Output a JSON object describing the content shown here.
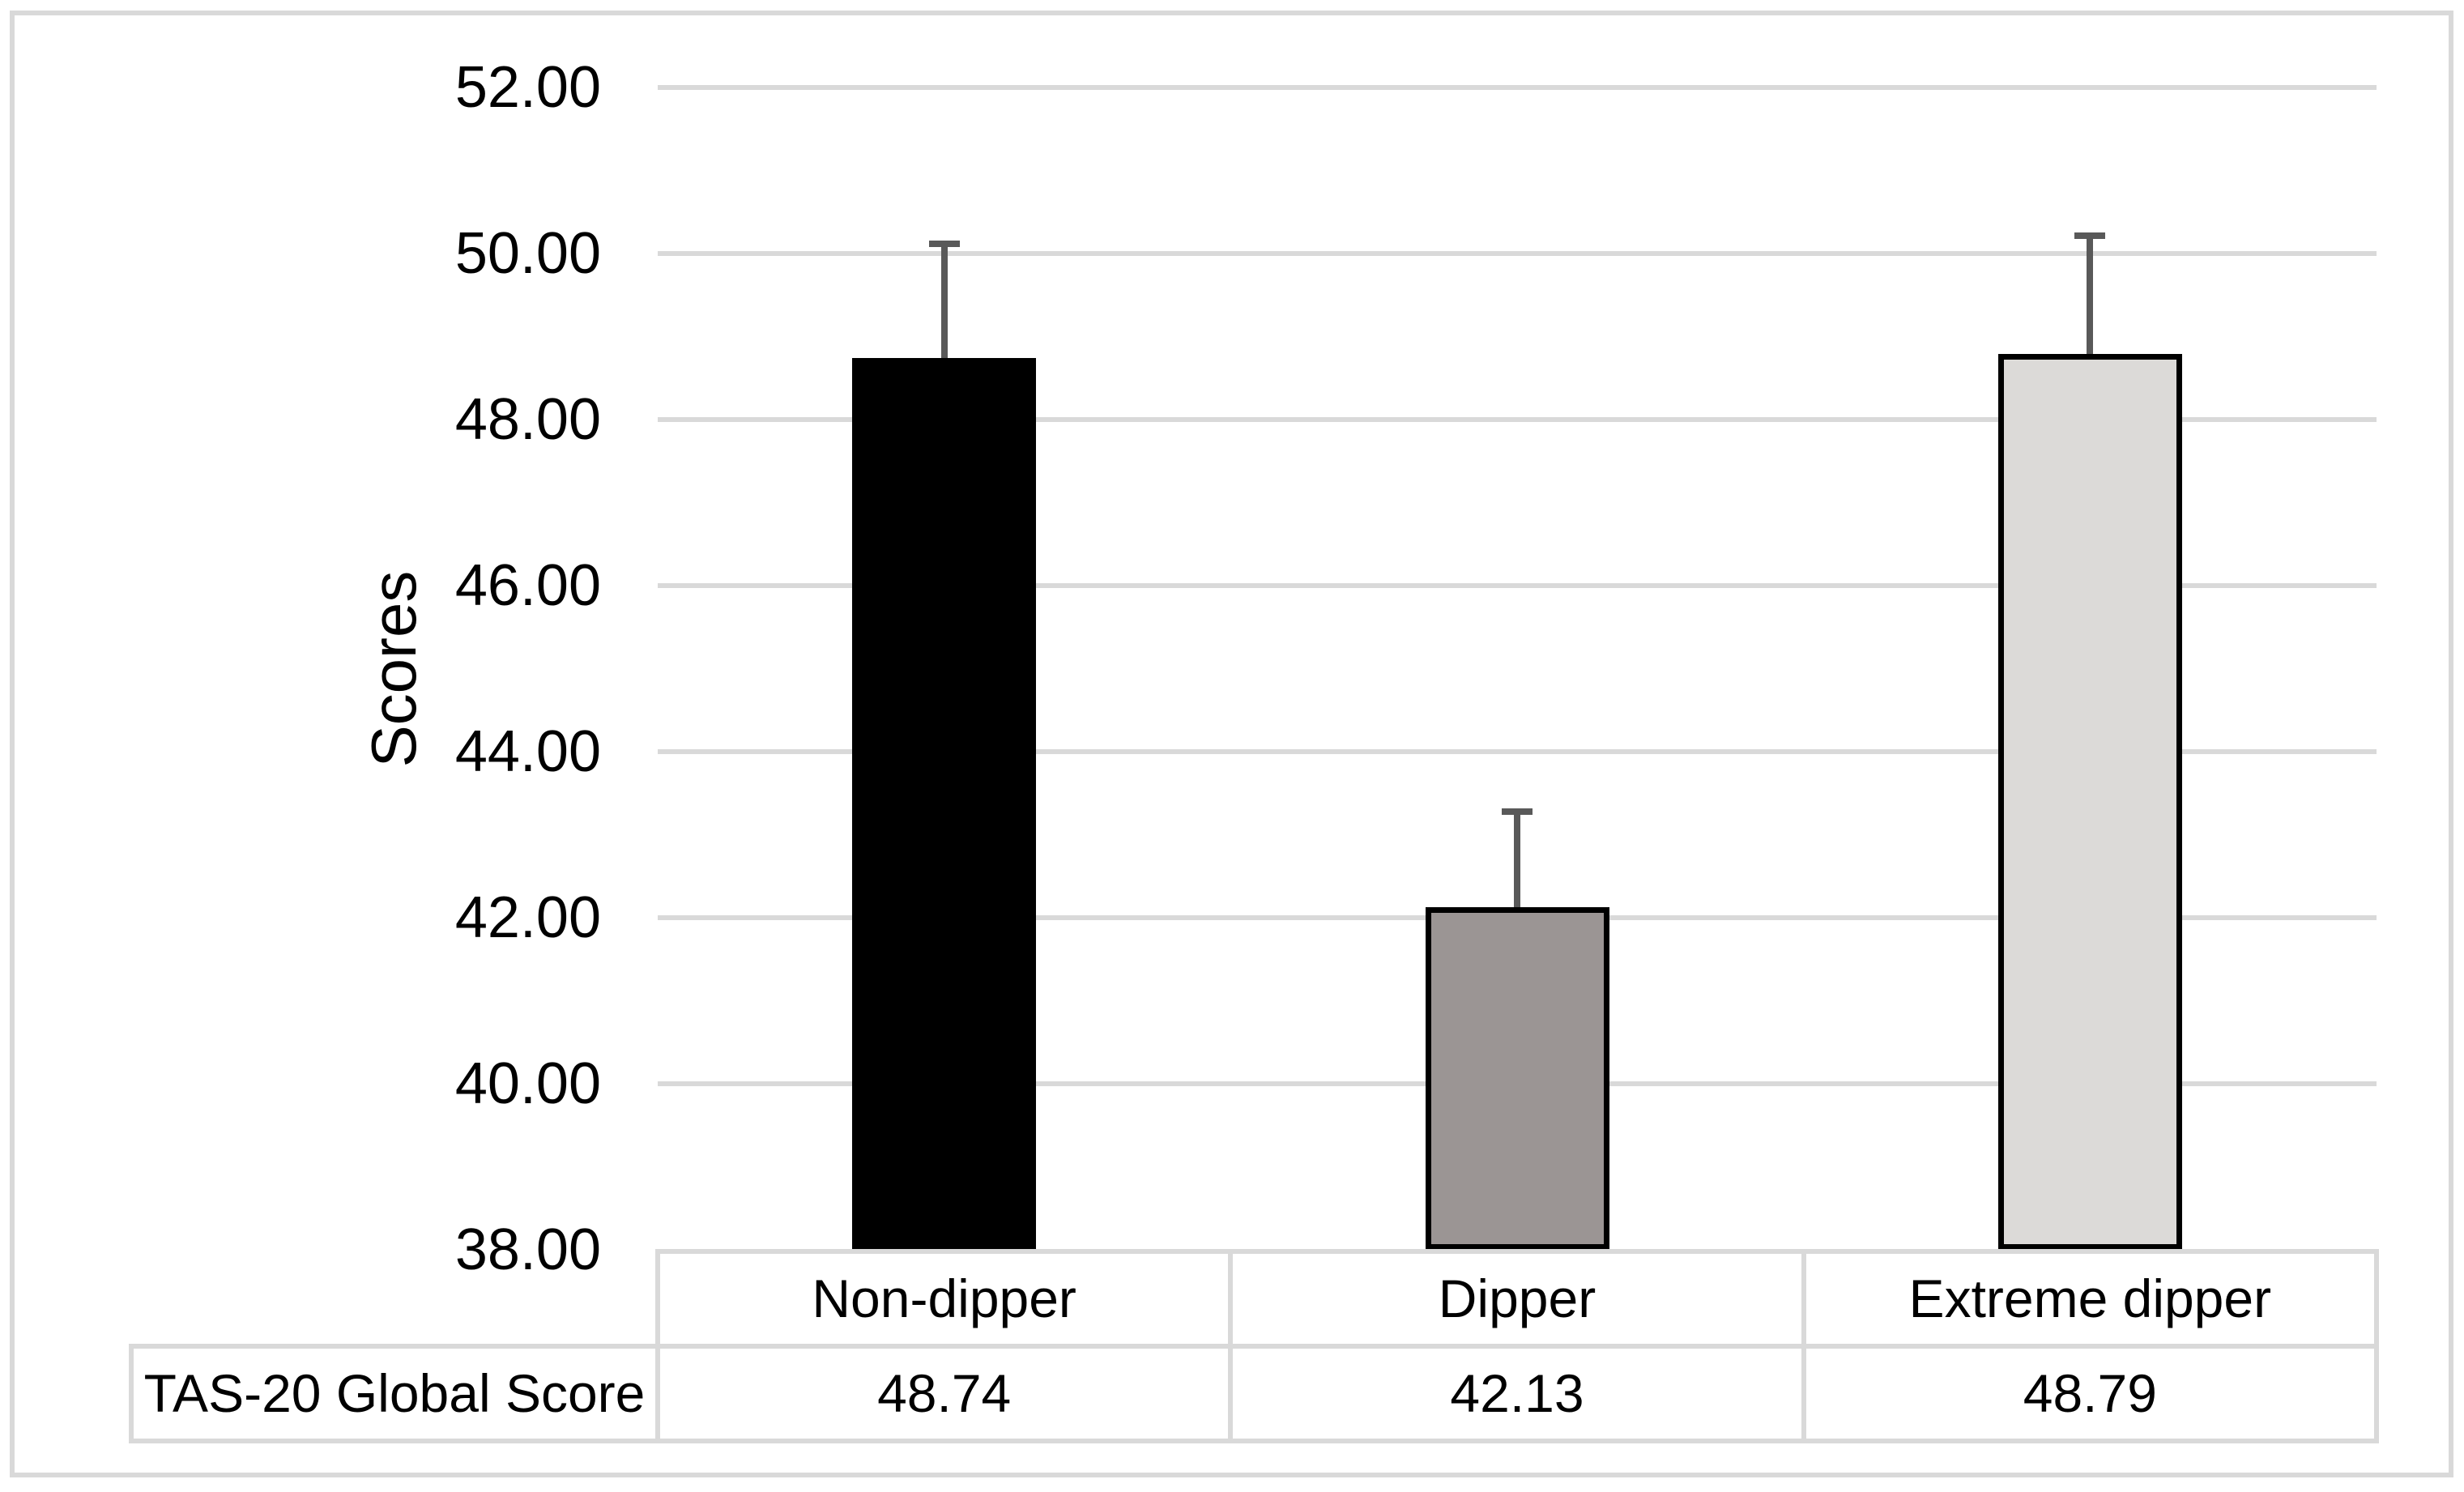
{
  "figure": {
    "background": "#ffffff",
    "border_color": "#d9d9d9"
  },
  "chart_data": {
    "type": "bar",
    "title": "",
    "ylabel": "Scores",
    "xlabel": "",
    "ylim": [
      38,
      52
    ],
    "ytick_step": 2,
    "yticks": [
      "52.00",
      "50.00",
      "48.00",
      "46.00",
      "44.00",
      "42.00",
      "40.00",
      "38.00"
    ],
    "grid": true,
    "legend": "none",
    "categories": [
      "Non-dipper",
      "Dipper",
      "Extreme dipper"
    ],
    "series": [
      {
        "name": "TAS-20 Global Score",
        "values": [
          48.74,
          42.13,
          48.79
        ],
        "errors_plus": [
          1.38,
          1.15,
          1.42
        ],
        "bar_colors": [
          "#000000",
          "#9b9594",
          "#dcdad8"
        ]
      }
    ],
    "colors": {
      "bar_border": "#000000",
      "error_bar": "#595959",
      "gridline": "#d9d9d9",
      "table_border": "#d9d9d9",
      "text": "#000000"
    },
    "data_table": {
      "row_header": "TAS-20 Global Score",
      "values": [
        "48.74",
        "42.13",
        "48.79"
      ]
    }
  }
}
